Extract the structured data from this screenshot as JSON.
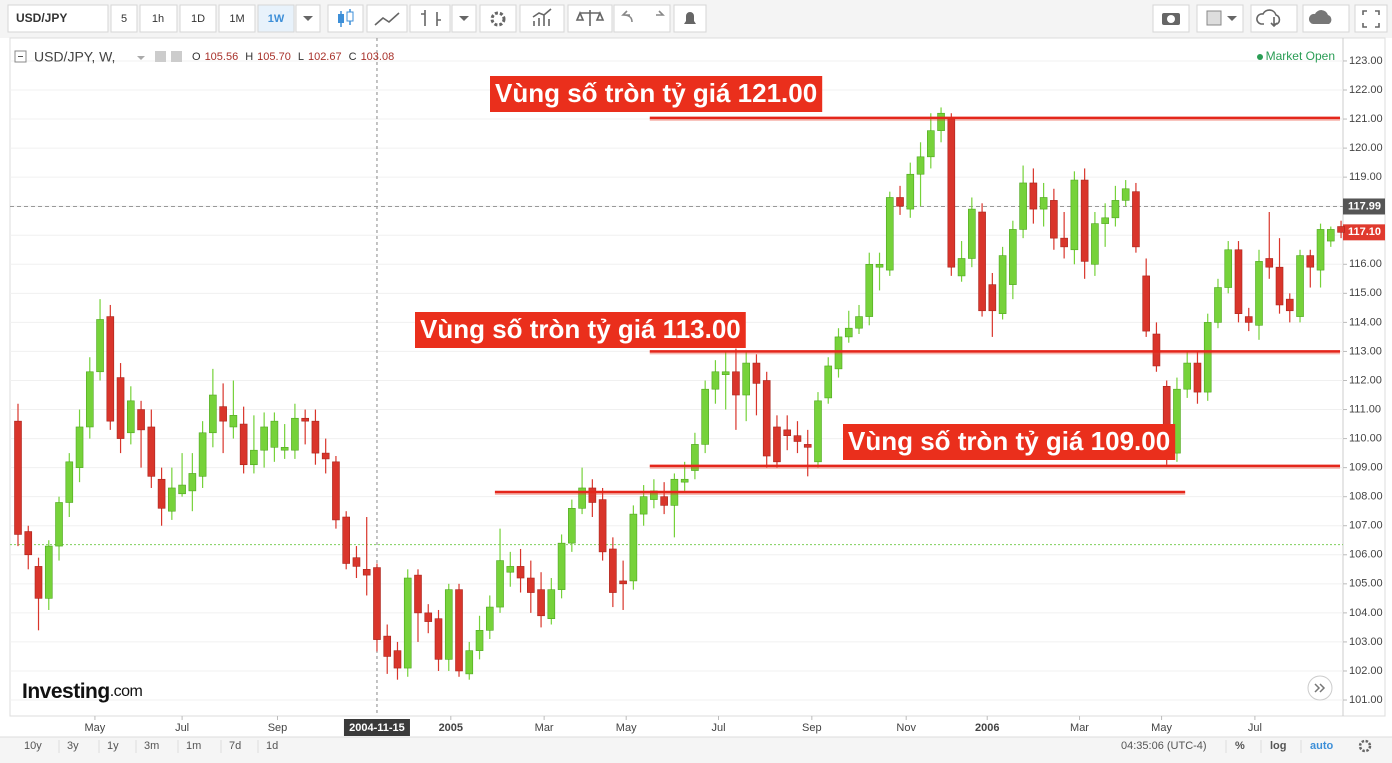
{
  "ui": {
    "symbol": "USD/JPY",
    "intervals": [
      "5",
      "1h",
      "1D",
      "1M",
      "1W"
    ],
    "legend": {
      "symbol": "USD/JPY, W,",
      "ohlc": [
        {
          "key": "O",
          "value": "105.56"
        },
        {
          "key": "H",
          "value": "105.70"
        },
        {
          "key": "L",
          "value": "102.67"
        },
        {
          "key": "C",
          "value": "103.08"
        }
      ]
    },
    "status": "Market Open",
    "logo": {
      "main": "Investing",
      "suffix": ".com"
    },
    "ranges": [
      "10y",
      "3y",
      "1y",
      "3m",
      "1m",
      "7d",
      "1d"
    ],
    "clock": "04:35:06 (UTC-4)",
    "options": [
      "%",
      "log",
      "auto"
    ]
  },
  "chart_data": {
    "type": "candlestick",
    "up_color": "#76d23a",
    "down_color": "#d9352b",
    "grid": true,
    "xlim": [
      -0.78,
      129.19
    ],
    "ylim": [
      100.45,
      123.79
    ],
    "yticks": [
      {
        "value": 101,
        "label": "101.00"
      },
      {
        "value": 102,
        "label": "102.00"
      },
      {
        "value": 103,
        "label": "103.00"
      },
      {
        "value": 104,
        "label": "104.00"
      },
      {
        "value": 105,
        "label": "105.00"
      },
      {
        "value": 106,
        "label": "106.00"
      },
      {
        "value": 107,
        "label": "107.00"
      },
      {
        "value": 108,
        "label": "108.00"
      },
      {
        "value": 109,
        "label": "109.00"
      },
      {
        "value": 110,
        "label": "110.00"
      },
      {
        "value": 111,
        "label": "111.00"
      },
      {
        "value": 112,
        "label": "112.00"
      },
      {
        "value": 113,
        "label": "113.00"
      },
      {
        "value": 114,
        "label": "114.00"
      },
      {
        "value": 115,
        "label": "115.00"
      },
      {
        "value": 116,
        "label": "116.00"
      },
      {
        "value": 117,
        "label": "117.00"
      },
      {
        "value": 118,
        "label": "118.00"
      },
      {
        "value": 119,
        "label": "119.00"
      },
      {
        "value": 120,
        "label": "120.00"
      },
      {
        "value": 121,
        "label": "121.00"
      },
      {
        "value": 122,
        "label": "122.00"
      },
      {
        "value": 123,
        "label": "123.00"
      }
    ],
    "xticks": [
      {
        "value": 7.5,
        "label": "May"
      },
      {
        "value": 16,
        "label": "Jul"
      },
      {
        "value": 25.3,
        "label": "Sep"
      },
      {
        "value": 42.2,
        "label": "2005"
      },
      {
        "value": 51.3,
        "label": "Mar"
      },
      {
        "value": 59.3,
        "label": "May"
      },
      {
        "value": 68.3,
        "label": "Jul"
      },
      {
        "value": 77.4,
        "label": "Sep"
      },
      {
        "value": 86.6,
        "label": "Nov"
      },
      {
        "value": 94.5,
        "label": "2006"
      },
      {
        "value": 103.5,
        "label": "Mar"
      },
      {
        "value": 111.5,
        "label": "May"
      },
      {
        "value": 120.6,
        "label": "Jul"
      }
    ],
    "crosshair": {
      "x": 35,
      "label": "2004-11-15"
    },
    "baseline": 106.35,
    "price_tags": [
      {
        "value": 117.99,
        "label": "117.99",
        "color": "#555555",
        "line": true
      },
      {
        "value": 117.1,
        "label": "117.10",
        "color": "#e03a2e",
        "line": false
      }
    ],
    "annotations": [
      {
        "text": "Vùng số tròn tỷ giá 121.00",
        "value": 121.04,
        "x": [
          61.6,
          128.9
        ]
      },
      {
        "text": "Vùng số tròn tỷ giá 113.00",
        "value": 113.0,
        "x": [
          61.6,
          128.9
        ]
      },
      {
        "text": "Vùng số tròn tỷ giá 109.00",
        "value": 109.06,
        "x": [
          61.6,
          128.9
        ]
      },
      {
        "value": 108.16,
        "x": [
          46.5,
          113.8
        ]
      }
    ],
    "candles": [
      [
        110.6,
        111.2,
        106.3,
        106.7
      ],
      [
        106.8,
        107.0,
        105.5,
        106.0
      ],
      [
        105.6,
        105.9,
        103.4,
        104.5
      ],
      [
        104.5,
        106.5,
        104.1,
        106.3
      ],
      [
        106.3,
        108.0,
        105.8,
        107.8
      ],
      [
        107.8,
        109.5,
        107.3,
        109.2
      ],
      [
        109.0,
        111.0,
        108.5,
        110.4
      ],
      [
        110.4,
        112.8,
        110.0,
        112.3
      ],
      [
        112.3,
        114.8,
        112.0,
        114.1
      ],
      [
        114.2,
        114.6,
        110.3,
        110.6
      ],
      [
        112.1,
        112.6,
        109.5,
        110.0
      ],
      [
        110.2,
        111.8,
        109.8,
        111.3
      ],
      [
        111.0,
        111.3,
        109.0,
        110.3
      ],
      [
        110.4,
        111.0,
        108.3,
        108.7
      ],
      [
        108.6,
        109.0,
        107.0,
        107.6
      ],
      [
        107.5,
        109.0,
        107.2,
        108.3
      ],
      [
        108.1,
        109.5,
        108.0,
        108.4
      ],
      [
        108.2,
        109.5,
        107.5,
        108.8
      ],
      [
        108.7,
        110.6,
        108.3,
        110.2
      ],
      [
        110.2,
        112.4,
        109.7,
        111.5
      ],
      [
        111.1,
        111.9,
        109.5,
        110.6
      ],
      [
        110.4,
        112.0,
        110.0,
        110.8
      ],
      [
        110.5,
        111.1,
        108.8,
        109.1
      ],
      [
        109.1,
        110.8,
        108.8,
        109.6
      ],
      [
        109.6,
        110.9,
        109.0,
        110.4
      ],
      [
        109.7,
        110.9,
        109.2,
        110.6
      ],
      [
        109.6,
        110.5,
        109.3,
        109.7
      ],
      [
        109.6,
        111.2,
        109.3,
        110.7
      ],
      [
        110.7,
        111.0,
        109.8,
        110.6
      ],
      [
        110.6,
        111.0,
        109.1,
        109.5
      ],
      [
        109.5,
        110.0,
        108.8,
        109.3
      ],
      [
        109.2,
        109.4,
        106.9,
        107.2
      ],
      [
        107.3,
        107.5,
        105.5,
        105.7
      ],
      [
        105.9,
        106.3,
        105.2,
        105.6
      ],
      [
        105.5,
        107.3,
        104.6,
        105.3
      ],
      [
        105.56,
        105.7,
        102.67,
        103.08
      ],
      [
        103.2,
        103.6,
        101.9,
        102.5
      ],
      [
        102.7,
        103.0,
        101.7,
        102.1
      ],
      [
        102.1,
        105.5,
        101.8,
        105.2
      ],
      [
        105.3,
        105.5,
        103.0,
        104.0
      ],
      [
        104.0,
        104.3,
        103.3,
        103.7
      ],
      [
        103.8,
        104.1,
        102.0,
        102.4
      ],
      [
        102.4,
        105.0,
        102.0,
        104.8
      ],
      [
        104.8,
        105.0,
        101.8,
        102.0
      ],
      [
        101.9,
        103.0,
        101.7,
        102.7
      ],
      [
        102.7,
        103.9,
        102.4,
        103.4
      ],
      [
        103.4,
        104.6,
        103.1,
        104.2
      ],
      [
        104.2,
        106.9,
        104.0,
        105.8
      ],
      [
        105.4,
        106.1,
        104.9,
        105.6
      ],
      [
        105.6,
        106.2,
        104.7,
        105.2
      ],
      [
        105.2,
        105.8,
        104.0,
        104.7
      ],
      [
        104.8,
        105.4,
        103.5,
        103.9
      ],
      [
        103.8,
        105.2,
        103.6,
        104.8
      ],
      [
        104.8,
        106.7,
        104.5,
        106.4
      ],
      [
        106.4,
        107.9,
        106.1,
        107.6
      ],
      [
        107.6,
        109.0,
        107.4,
        108.3
      ],
      [
        108.3,
        108.6,
        107.3,
        107.8
      ],
      [
        107.9,
        108.3,
        105.8,
        106.1
      ],
      [
        106.2,
        106.6,
        104.2,
        104.7
      ],
      [
        105.1,
        105.8,
        104.1,
        105.0
      ],
      [
        105.1,
        107.7,
        104.8,
        107.4
      ],
      [
        107.4,
        108.4,
        107.0,
        108.0
      ],
      [
        107.9,
        108.6,
        107.6,
        108.2
      ],
      [
        108.0,
        108.5,
        107.4,
        107.7
      ],
      [
        107.7,
        108.8,
        106.6,
        108.6
      ],
      [
        108.5,
        109.2,
        108.2,
        108.6
      ],
      [
        108.9,
        110.2,
        108.6,
        109.8
      ],
      [
        109.8,
        112.0,
        109.5,
        111.7
      ],
      [
        111.7,
        112.7,
        111.2,
        112.3
      ],
      [
        112.2,
        113.0,
        111.0,
        112.3
      ],
      [
        112.3,
        113.1,
        110.3,
        111.5
      ],
      [
        111.5,
        113.0,
        110.6,
        112.6
      ],
      [
        112.6,
        112.9,
        110.8,
        111.9
      ],
      [
        112.0,
        112.3,
        109.0,
        109.4
      ],
      [
        110.4,
        110.8,
        109.0,
        109.2
      ],
      [
        110.3,
        110.8,
        109.6,
        110.1
      ],
      [
        110.1,
        110.6,
        109.5,
        109.9
      ],
      [
        109.8,
        110.3,
        108.7,
        109.7
      ],
      [
        109.2,
        111.6,
        109.0,
        111.3
      ],
      [
        111.4,
        112.8,
        111.2,
        112.5
      ],
      [
        112.4,
        113.8,
        112.1,
        113.5
      ],
      [
        113.5,
        114.4,
        113.3,
        113.8
      ],
      [
        113.8,
        114.6,
        113.6,
        114.2
      ],
      [
        114.2,
        116.4,
        113.9,
        116.0
      ],
      [
        115.9,
        116.4,
        115.1,
        116.0
      ],
      [
        115.8,
        118.5,
        115.6,
        118.3
      ],
      [
        118.3,
        118.7,
        117.7,
        118.0
      ],
      [
        117.9,
        119.5,
        117.6,
        119.1
      ],
      [
        119.1,
        120.2,
        118.0,
        119.7
      ],
      [
        119.7,
        121.2,
        119.3,
        120.6
      ],
      [
        120.6,
        121.4,
        120.2,
        121.2
      ],
      [
        121.0,
        121.2,
        115.6,
        115.9
      ],
      [
        115.6,
        116.8,
        115.4,
        116.2
      ],
      [
        116.2,
        118.3,
        115.9,
        117.9
      ],
      [
        117.8,
        118.1,
        114.2,
        114.4
      ],
      [
        115.3,
        115.7,
        113.5,
        114.4
      ],
      [
        114.3,
        116.6,
        114.1,
        116.3
      ],
      [
        115.3,
        117.5,
        114.8,
        117.2
      ],
      [
        117.2,
        119.4,
        116.9,
        118.8
      ],
      [
        118.8,
        119.3,
        117.4,
        117.9
      ],
      [
        117.9,
        118.8,
        117.3,
        118.3
      ],
      [
        118.2,
        118.6,
        116.5,
        116.9
      ],
      [
        116.9,
        117.8,
        116.2,
        116.6
      ],
      [
        116.5,
        119.2,
        116.0,
        118.9
      ],
      [
        118.9,
        119.3,
        115.5,
        116.1
      ],
      [
        116.0,
        117.8,
        115.6,
        117.4
      ],
      [
        117.4,
        118.1,
        116.6,
        117.6
      ],
      [
        117.6,
        118.7,
        117.3,
        118.2
      ],
      [
        118.2,
        118.9,
        118.0,
        118.6
      ],
      [
        118.5,
        118.8,
        116.4,
        116.6
      ],
      [
        115.6,
        116.2,
        113.5,
        113.7
      ],
      [
        113.6,
        114.0,
        112.3,
        112.5
      ],
      [
        111.8,
        112.0,
        109.1,
        109.6
      ],
      [
        109.5,
        112.1,
        109.2,
        111.7
      ],
      [
        111.7,
        113.0,
        111.4,
        112.6
      ],
      [
        112.6,
        113.0,
        111.2,
        111.6
      ],
      [
        111.6,
        114.3,
        111.3,
        114.0
      ],
      [
        114.0,
        115.5,
        113.8,
        115.2
      ],
      [
        115.2,
        116.8,
        115.0,
        116.5
      ],
      [
        116.5,
        116.8,
        114.0,
        114.3
      ],
      [
        114.2,
        114.5,
        113.7,
        114.0
      ],
      [
        113.9,
        116.5,
        113.4,
        116.1
      ],
      [
        116.2,
        117.8,
        115.5,
        115.9
      ],
      [
        115.9,
        116.9,
        114.3,
        114.6
      ],
      [
        114.8,
        115.0,
        114.0,
        114.4
      ],
      [
        114.2,
        116.5,
        114.0,
        116.3
      ],
      [
        116.3,
        116.5,
        115.2,
        115.9
      ],
      [
        115.8,
        117.4,
        115.2,
        117.2
      ],
      [
        116.8,
        117.3,
        116.6,
        117.2
      ],
      [
        117.3,
        117.5,
        116.9,
        117.1
      ]
    ]
  }
}
